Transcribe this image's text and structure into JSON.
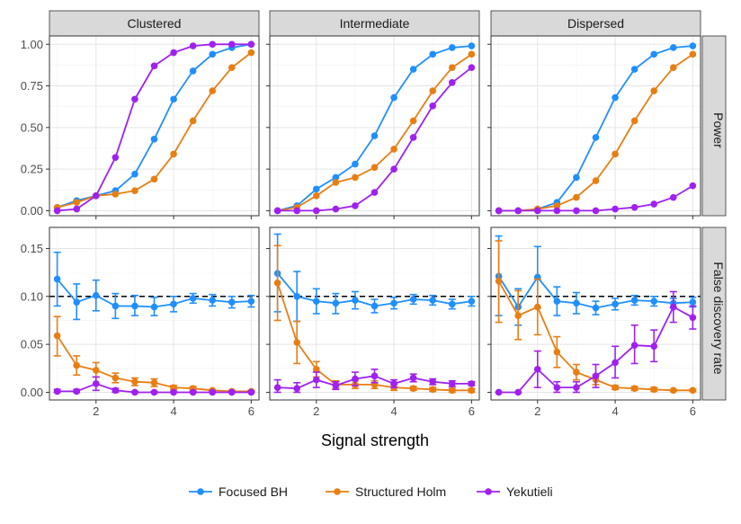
{
  "chart_data": {
    "type": "line",
    "layout": "faceted grid: 2 rows x 3 columns",
    "xlabel": "Signal strength",
    "x": [
      1,
      1.5,
      2,
      2.5,
      3,
      3.5,
      4,
      4.5,
      5,
      5.5,
      6
    ],
    "xlim": [
      0.8,
      6.2
    ],
    "x_ticks": [
      2,
      4,
      6
    ],
    "columns": [
      "Clustered",
      "Intermediate",
      "Dispersed"
    ],
    "rows": [
      {
        "label": "Power",
        "ylim": [
          -0.03,
          1.05
        ],
        "y_ticks": [
          0,
          0.25,
          0.5,
          0.75,
          1.0
        ],
        "y_tick_labels": [
          "0.00",
          "0.25",
          "0.50",
          "0.75",
          "1.00"
        ],
        "reference_line": null
      },
      {
        "label": "False discovery rate",
        "ylim": [
          -0.008,
          0.172
        ],
        "y_ticks": [
          0,
          0.05,
          0.1,
          0.15
        ],
        "y_tick_labels": [
          "0.00",
          "0.05",
          "0.10",
          "0.15"
        ],
        "reference_line": 0.1
      }
    ],
    "series_names": [
      "Focused BH",
      "Structured Holm",
      "Yekutieli"
    ],
    "series_colors": [
      "#1f8fff",
      "#e87e13",
      "#a020f0"
    ],
    "panels": [
      {
        "row": "Power",
        "column": "Clustered",
        "series": [
          {
            "name": "Focused BH",
            "values": [
              0.02,
              0.06,
              0.09,
              0.12,
              0.22,
              0.43,
              0.67,
              0.84,
              0.94,
              0.98,
              1.0
            ]
          },
          {
            "name": "Structured Holm",
            "values": [
              0.02,
              0.05,
              0.09,
              0.1,
              0.12,
              0.19,
              0.34,
              0.54,
              0.72,
              0.86,
              0.95
            ]
          },
          {
            "name": "Yekutieli",
            "values": [
              0.0,
              0.01,
              0.09,
              0.32,
              0.67,
              0.87,
              0.95,
              0.99,
              1.0,
              1.0,
              1.0
            ]
          }
        ]
      },
      {
        "row": "Power",
        "column": "Intermediate",
        "series": [
          {
            "name": "Focused BH",
            "values": [
              0.0,
              0.03,
              0.13,
              0.2,
              0.28,
              0.45,
              0.68,
              0.85,
              0.94,
              0.98,
              0.99
            ]
          },
          {
            "name": "Structured Holm",
            "values": [
              0.0,
              0.02,
              0.09,
              0.17,
              0.2,
              0.26,
              0.37,
              0.54,
              0.72,
              0.86,
              0.94
            ]
          },
          {
            "name": "Yekutieli",
            "values": [
              0.0,
              0.0,
              0.0,
              0.01,
              0.03,
              0.11,
              0.25,
              0.44,
              0.63,
              0.77,
              0.86
            ]
          }
        ]
      },
      {
        "row": "Power",
        "column": "Dispersed",
        "series": [
          {
            "name": "Focused BH",
            "values": [
              0.0,
              0.0,
              0.01,
              0.05,
              0.2,
              0.44,
              0.68,
              0.85,
              0.94,
              0.98,
              0.99
            ]
          },
          {
            "name": "Structured Holm",
            "values": [
              0.0,
              0.0,
              0.01,
              0.03,
              0.08,
              0.18,
              0.34,
              0.54,
              0.72,
              0.86,
              0.94
            ]
          },
          {
            "name": "Yekutieli",
            "values": [
              0.0,
              0.0,
              0.0,
              0.0,
              0.0,
              0.0,
              0.01,
              0.02,
              0.04,
              0.08,
              0.15
            ]
          }
        ]
      },
      {
        "row": "False discovery rate",
        "column": "Clustered",
        "series": [
          {
            "name": "Focused BH",
            "values": [
              0.118,
              0.094,
              0.101,
              0.09,
              0.09,
              0.089,
              0.092,
              0.098,
              0.096,
              0.094,
              0.095
            ],
            "err_low": [
              0.09,
              0.076,
              0.085,
              0.077,
              0.08,
              0.08,
              0.084,
              0.093,
              0.09,
              0.088,
              0.089
            ],
            "err_high": [
              0.146,
              0.113,
              0.117,
              0.103,
              0.101,
              0.099,
              0.1,
              0.103,
              0.102,
              0.1,
              0.101
            ]
          },
          {
            "name": "Structured Holm",
            "values": [
              0.059,
              0.028,
              0.023,
              0.015,
              0.011,
              0.01,
              0.005,
              0.004,
              0.002,
              0.001,
              0.001
            ],
            "err_low": [
              0.038,
              0.018,
              0.016,
              0.01,
              0.007,
              0.006,
              0.003,
              0.002,
              0.001,
              0.0,
              0.0
            ],
            "err_high": [
              0.079,
              0.038,
              0.031,
              0.02,
              0.015,
              0.014,
              0.007,
              0.006,
              0.003,
              0.002,
              0.002
            ]
          },
          {
            "name": "Yekutieli",
            "values": [
              0.001,
              0.001,
              0.009,
              0.002,
              0.0,
              0.0,
              0.0,
              0.0,
              0.0,
              0.0,
              0.0
            ],
            "err_low": [
              0.0,
              0.0,
              0.002,
              0.0,
              0.0,
              0.0,
              0.0,
              0.0,
              0.0,
              0.0,
              0.0
            ],
            "err_high": [
              0.003,
              0.003,
              0.016,
              0.004,
              0.001,
              0.001,
              0.001,
              0.001,
              0.001,
              0.001,
              0.001
            ]
          }
        ]
      },
      {
        "row": "False discovery rate",
        "column": "Intermediate",
        "series": [
          {
            "name": "Focused BH",
            "values": [
              0.124,
              0.1,
              0.095,
              0.093,
              0.096,
              0.09,
              0.093,
              0.097,
              0.096,
              0.092,
              0.095
            ],
            "err_low": [
              0.084,
              0.074,
              0.082,
              0.082,
              0.087,
              0.083,
              0.087,
              0.092,
              0.091,
              0.087,
              0.09
            ],
            "err_high": [
              0.165,
              0.126,
              0.108,
              0.103,
              0.105,
              0.097,
              0.099,
              0.102,
              0.101,
              0.097,
              0.1
            ]
          },
          {
            "name": "Structured Holm",
            "values": [
              0.114,
              0.052,
              0.024,
              0.008,
              0.008,
              0.008,
              0.005,
              0.004,
              0.003,
              0.002,
              0.002
            ],
            "err_low": [
              0.075,
              0.03,
              0.016,
              0.004,
              0.004,
              0.004,
              0.002,
              0.002,
              0.001,
              0.0,
              0.0
            ],
            "err_high": [
              0.153,
              0.074,
              0.032,
              0.012,
              0.012,
              0.012,
              0.008,
              0.006,
              0.005,
              0.004,
              0.004
            ]
          },
          {
            "name": "Yekutieli",
            "values": [
              0.005,
              0.004,
              0.013,
              0.007,
              0.014,
              0.017,
              0.009,
              0.015,
              0.011,
              0.009,
              0.009
            ],
            "err_low": [
              0.0,
              0.0,
              0.005,
              0.003,
              0.007,
              0.01,
              0.005,
              0.011,
              0.008,
              0.006,
              0.007
            ],
            "err_high": [
              0.013,
              0.01,
              0.021,
              0.011,
              0.021,
              0.024,
              0.013,
              0.019,
              0.014,
              0.012,
              0.011
            ]
          }
        ]
      },
      {
        "row": "False discovery rate",
        "column": "Dispersed",
        "series": [
          {
            "name": "Focused BH",
            "values": [
              0.121,
              0.089,
              0.12,
              0.095,
              0.093,
              0.088,
              0.092,
              0.096,
              0.095,
              0.093,
              0.094
            ],
            "err_low": [
              0.08,
              0.07,
              0.088,
              0.08,
              0.082,
              0.081,
              0.086,
              0.091,
              0.09,
              0.088,
              0.089
            ],
            "err_high": [
              0.163,
              0.108,
              0.152,
              0.11,
              0.104,
              0.095,
              0.098,
              0.101,
              0.1,
              0.098,
              0.099
            ]
          },
          {
            "name": "Structured Holm",
            "values": [
              0.116,
              0.08,
              0.089,
              0.042,
              0.021,
              0.013,
              0.005,
              0.004,
              0.003,
              0.002,
              0.002
            ],
            "err_low": [
              0.073,
              0.055,
              0.06,
              0.026,
              0.013,
              0.008,
              0.003,
              0.002,
              0.001,
              0.001,
              0.001
            ],
            "err_high": [
              0.158,
              0.106,
              0.118,
              0.058,
              0.029,
              0.018,
              0.007,
              0.006,
              0.005,
              0.003,
              0.003
            ]
          },
          {
            "name": "Yekutieli",
            "values": [
              0.0,
              0.0,
              0.024,
              0.005,
              0.005,
              0.017,
              0.031,
              0.049,
              0.048,
              0.089,
              0.078
            ],
            "err_low": [
              0.0,
              0.0,
              0.005,
              0.0,
              0.0,
              0.005,
              0.015,
              0.03,
              0.032,
              0.073,
              0.066
            ],
            "err_high": [
              0.0,
              0.0,
              0.043,
              0.011,
              0.011,
              0.029,
              0.048,
              0.07,
              0.065,
              0.105,
              0.09
            ]
          }
        ]
      }
    ]
  }
}
